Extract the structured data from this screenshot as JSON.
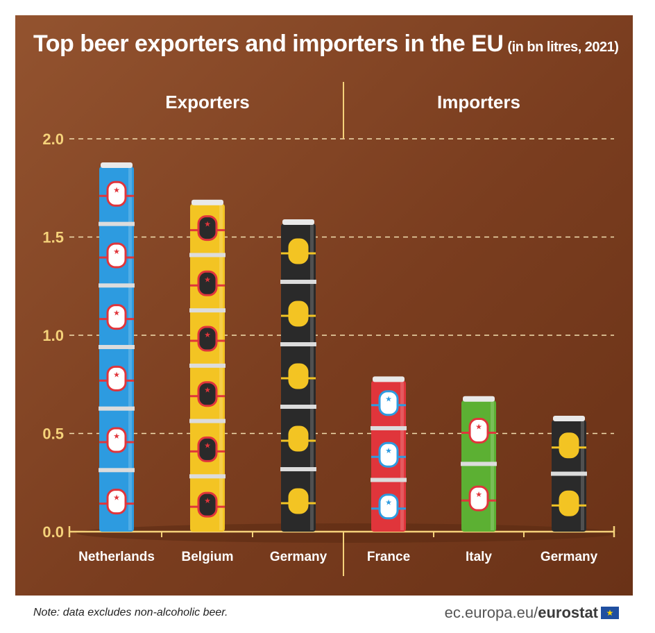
{
  "title": "Top beer exporters and importers in the EU",
  "title_unit": "(in bn litres, 2021)",
  "sections": {
    "left": "Exporters",
    "right": "Importers"
  },
  "note": "Note: data excludes non-alcoholic beer.",
  "source": {
    "prefix": "ec.europa.eu/",
    "brand": "eurostat",
    "flag_icon": "eu-flag-icon"
  },
  "colors": {
    "background": "#7e4020",
    "axis": "#f5d27a",
    "can_blue": "#2d9be0",
    "can_yellow": "#f3c423",
    "can_black": "#2a2a2a",
    "can_red": "#e0353b",
    "can_green": "#5cb033"
  },
  "chart_data": {
    "type": "bar",
    "title": "Top beer exporters and importers in the EU",
    "ylabel": "",
    "ylim": [
      0,
      2.0
    ],
    "yticks": [
      "0.0",
      "0.5",
      "1.0",
      "1.5",
      "2.0"
    ],
    "grid": true,
    "groups": [
      {
        "name": "Exporters",
        "categories": [
          "Netherlands",
          "Belgium",
          "Germany"
        ],
        "values": [
          1.88,
          1.69,
          1.59
        ]
      },
      {
        "name": "Importers",
        "categories": [
          "France",
          "Italy",
          "Germany"
        ],
        "values": [
          0.79,
          0.69,
          0.59
        ]
      }
    ],
    "categories": [
      "Netherlands",
      "Belgium",
      "Germany",
      "France",
      "Italy",
      "Germany"
    ],
    "values": [
      1.88,
      1.69,
      1.59,
      0.79,
      0.69,
      0.59
    ],
    "bar_colors": [
      "#2d9be0",
      "#f3c423",
      "#2a2a2a",
      "#e0353b",
      "#5cb033",
      "#2a2a2a"
    ]
  }
}
